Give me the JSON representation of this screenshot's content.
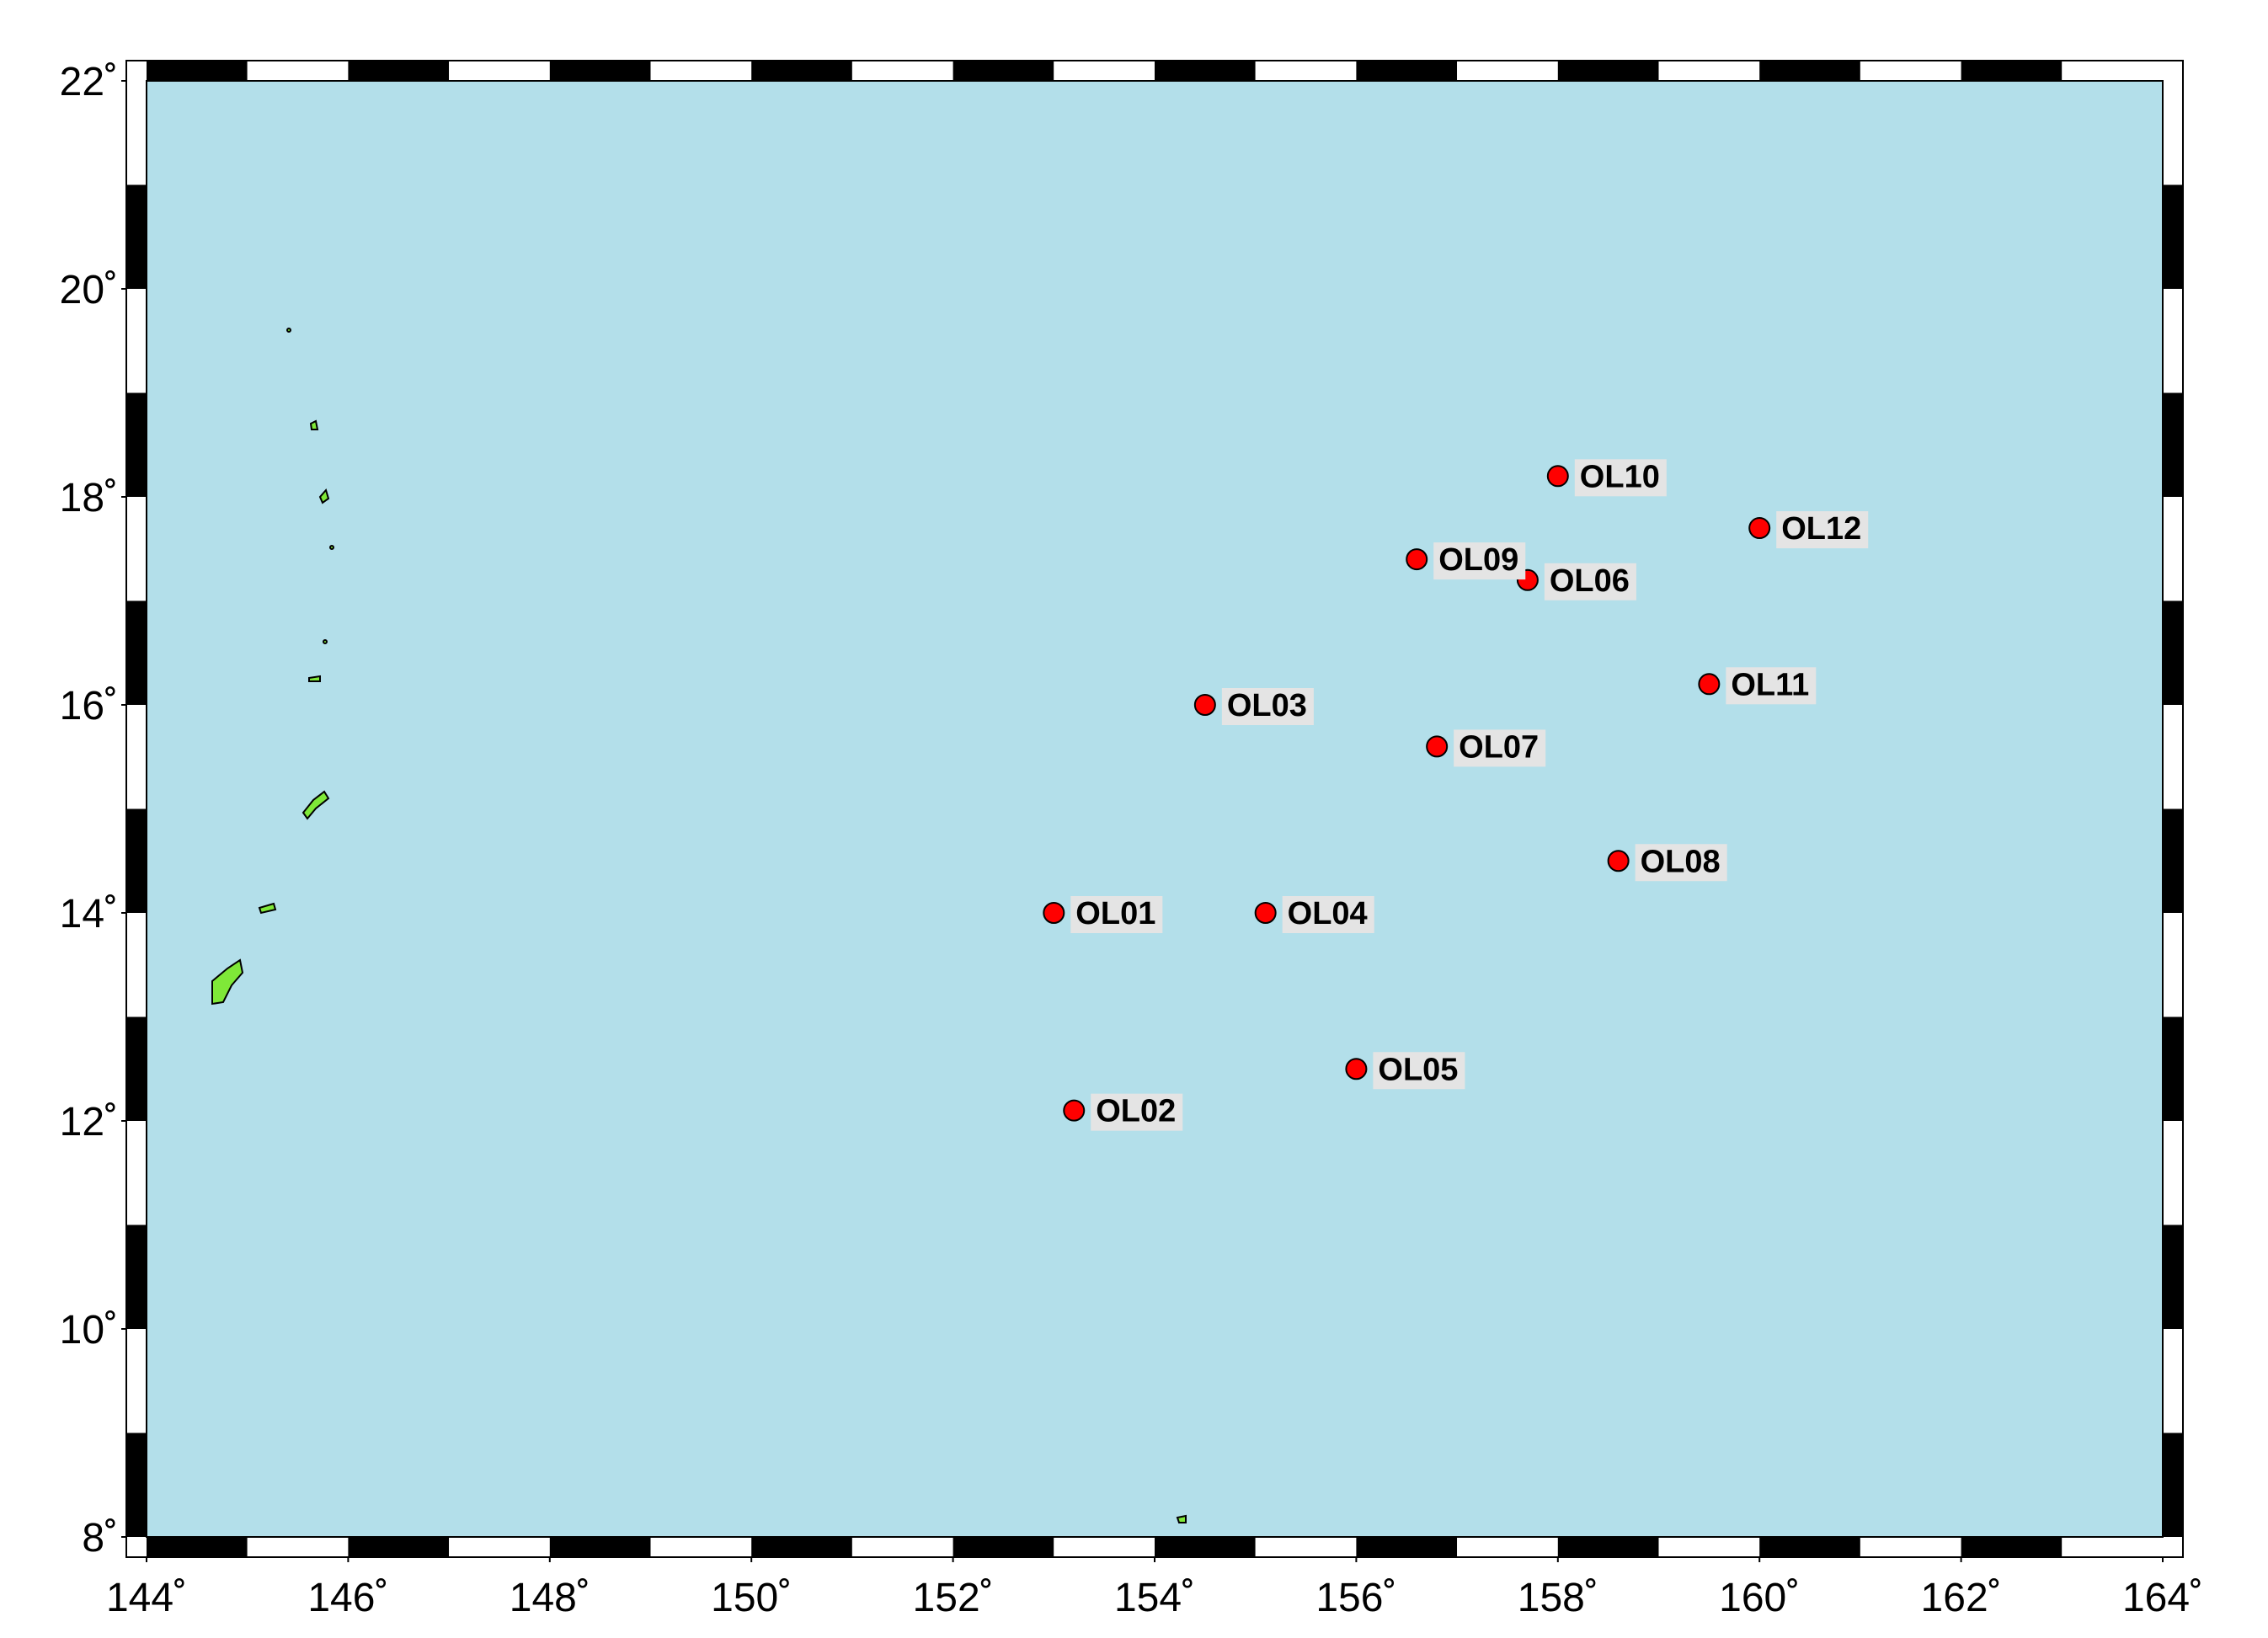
{
  "map": {
    "xlim": [
      144,
      164
    ],
    "ylim": [
      8,
      22
    ],
    "xticks": [
      {
        "value": 144,
        "label": "144˚"
      },
      {
        "value": 146,
        "label": "146˚"
      },
      {
        "value": 148,
        "label": "148˚"
      },
      {
        "value": 150,
        "label": "150˚"
      },
      {
        "value": 152,
        "label": "152˚"
      },
      {
        "value": 154,
        "label": "154˚"
      },
      {
        "value": 156,
        "label": "156˚"
      },
      {
        "value": 158,
        "label": "158˚"
      },
      {
        "value": 160,
        "label": "160˚"
      },
      {
        "value": 162,
        "label": "162˚"
      },
      {
        "value": 164,
        "label": "164˚"
      }
    ],
    "yticks": [
      {
        "value": 8,
        "label": "8˚"
      },
      {
        "value": 10,
        "label": "10˚"
      },
      {
        "value": 12,
        "label": "12˚"
      },
      {
        "value": 14,
        "label": "14˚"
      },
      {
        "value": 16,
        "label": "16˚"
      },
      {
        "value": 18,
        "label": "18˚"
      },
      {
        "value": 20,
        "label": "20˚"
      },
      {
        "value": 22,
        "label": "22˚"
      }
    ],
    "station_color": "#ff0000",
    "stations": [
      {
        "name": "OL01",
        "lon": 153.0,
        "lat": 14.0
      },
      {
        "name": "OL02",
        "lon": 153.2,
        "lat": 12.1
      },
      {
        "name": "OL03",
        "lon": 154.5,
        "lat": 16.0
      },
      {
        "name": "OL04",
        "lon": 155.1,
        "lat": 14.0
      },
      {
        "name": "OL05",
        "lon": 156.0,
        "lat": 12.5
      },
      {
        "name": "OL06",
        "lon": 157.7,
        "lat": 17.2
      },
      {
        "name": "OL07",
        "lon": 156.8,
        "lat": 15.6
      },
      {
        "name": "OL08",
        "lon": 158.6,
        "lat": 14.5
      },
      {
        "name": "OL09",
        "lon": 156.6,
        "lat": 17.4
      },
      {
        "name": "OL10",
        "lon": 158.0,
        "lat": 18.2
      },
      {
        "name": "OL11",
        "lon": 159.5,
        "lat": 16.2
      },
      {
        "name": "OL12",
        "lon": 160.0,
        "lat": 17.7
      }
    ]
  }
}
